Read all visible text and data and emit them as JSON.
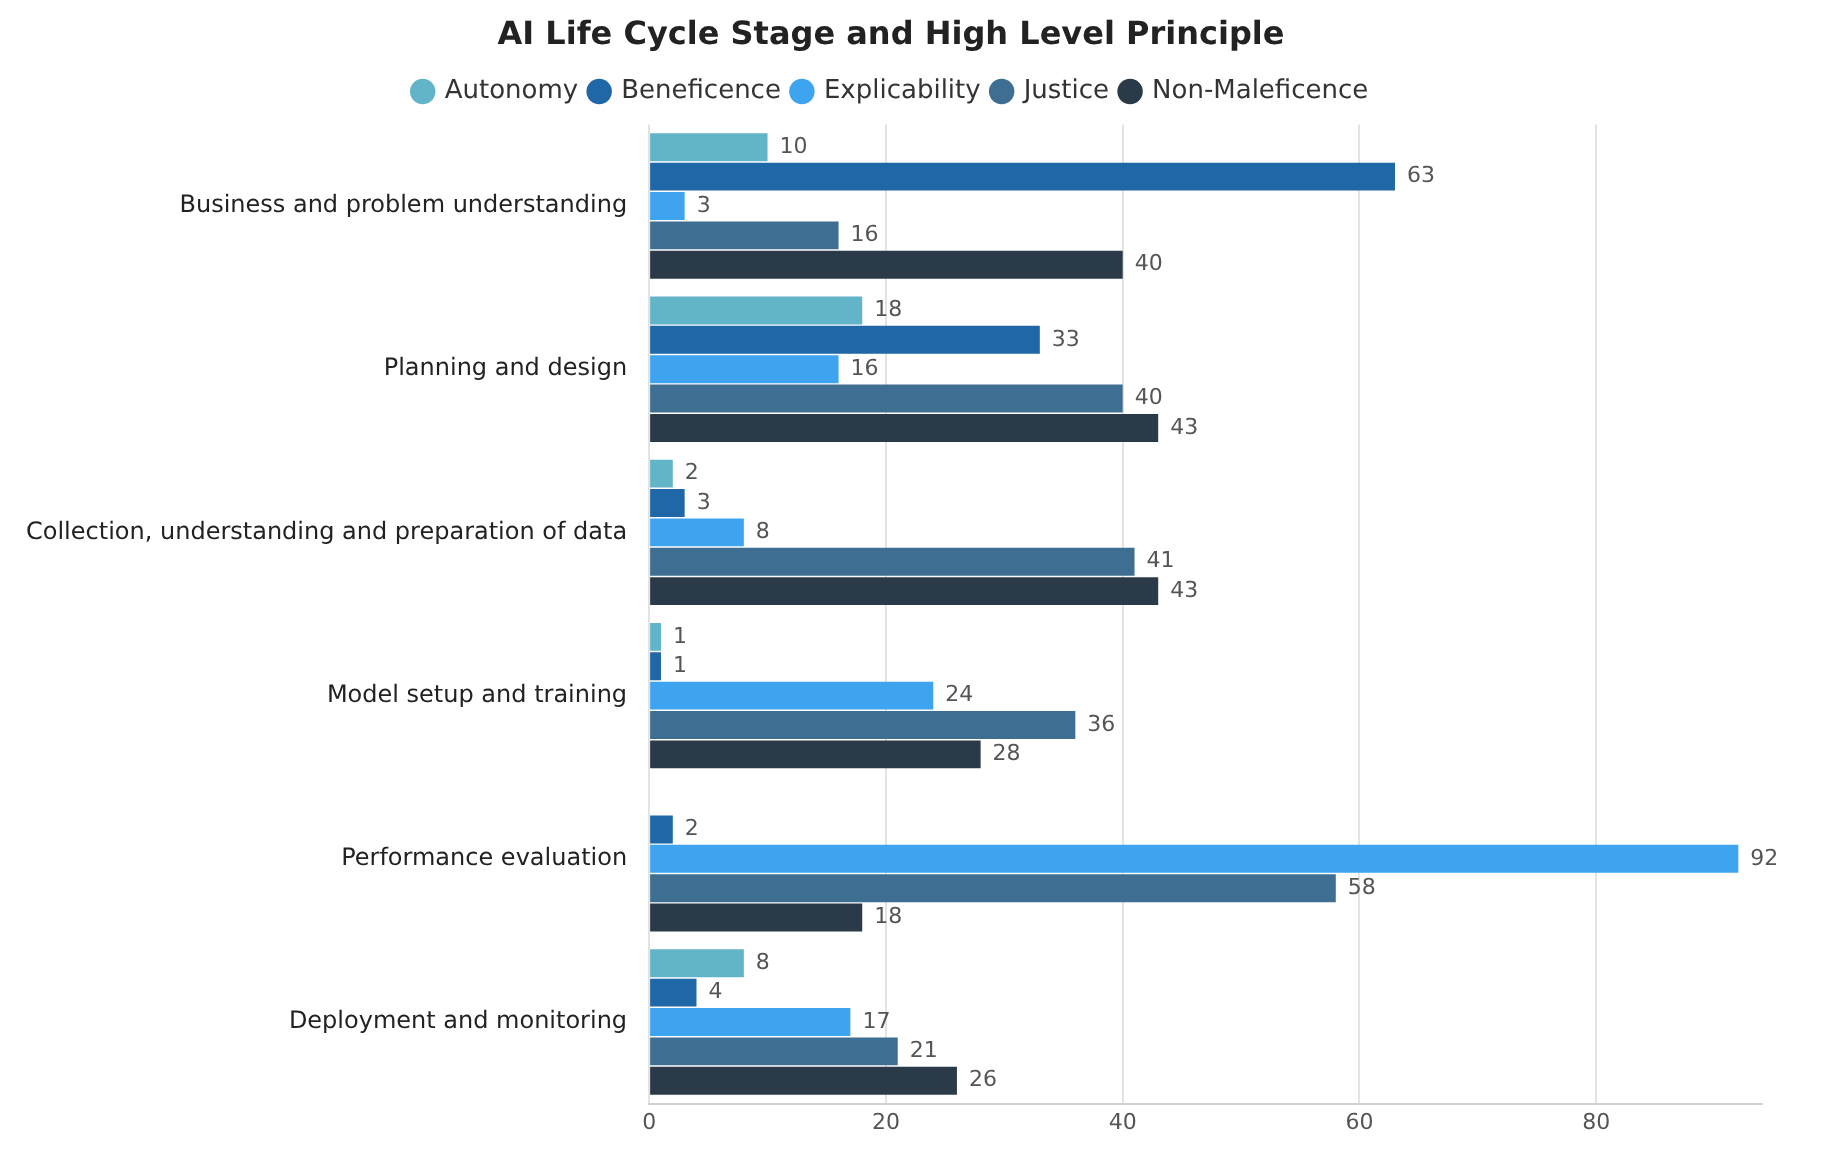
{
  "chart_data": {
    "type": "bar",
    "orientation": "horizontal",
    "title": "AI Life Cycle Stage and High Level Principle",
    "categories": [
      "Business and problem understanding",
      "Planning and design",
      "Collection, understanding and preparation of data",
      "Model setup and training",
      "Performance evaluation",
      "Deployment and monitoring"
    ],
    "series": [
      {
        "name": "Autonomy",
        "color": "#62b4c9",
        "values": [
          10,
          18,
          2,
          1,
          null,
          8
        ]
      },
      {
        "name": "Beneficence",
        "color": "#1f67a6",
        "values": [
          63,
          33,
          3,
          1,
          2,
          4
        ]
      },
      {
        "name": "Explicability",
        "color": "#3ea4f0",
        "values": [
          3,
          16,
          8,
          24,
          92,
          17
        ]
      },
      {
        "name": "Justice",
        "color": "#3e6f92",
        "values": [
          16,
          40,
          41,
          36,
          58,
          21
        ]
      },
      {
        "name": "Non-Maleficence",
        "color": "#2b3a49",
        "values": [
          40,
          43,
          43,
          28,
          18,
          26
        ]
      }
    ],
    "xlim": [
      0,
      94
    ],
    "xticks": [
      0,
      20,
      40,
      60,
      80
    ],
    "grid": "x",
    "legend": "top",
    "data_labels": true
  }
}
